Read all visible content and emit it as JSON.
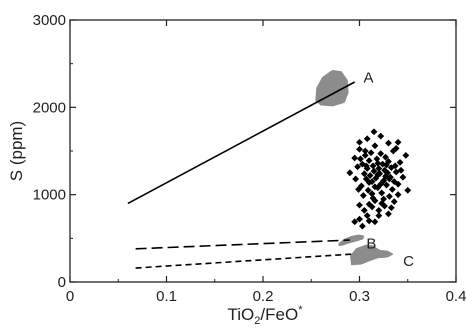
{
  "chart_data": {
    "type": "scatter",
    "title": "",
    "xlabel": {
      "main": "TiO",
      "sub": "2",
      "rest": "/FeO",
      "sup": "*"
    },
    "ylabel": "S (ppm)",
    "xlim": [
      0,
      0.4
    ],
    "ylim": [
      0,
      3000
    ],
    "xticks": [
      0,
      0.1,
      0.2,
      0.3,
      0.4
    ],
    "xtick_labels": [
      "0",
      "0.1",
      "0.2",
      "0.3",
      "0.4"
    ],
    "yticks": [
      0,
      1000,
      2000,
      3000
    ],
    "ytick_labels": [
      "0",
      "1000",
      "2000",
      "3000"
    ],
    "grid": false,
    "colors": {
      "marker": "#000000",
      "field": "#8c8c8c",
      "line": "#000000",
      "axis": "#222222"
    },
    "lines": [
      {
        "label": "A",
        "style": "solid",
        "points": [
          [
            0.06,
            900
          ],
          [
            0.295,
            2290
          ]
        ]
      },
      {
        "label": "B",
        "style": "long-dash",
        "points": [
          [
            0.068,
            380
          ],
          [
            0.29,
            480
          ]
        ]
      },
      {
        "label": "C",
        "style": "short-dash",
        "points": [
          [
            0.068,
            160
          ],
          [
            0.293,
            320
          ]
        ]
      }
    ],
    "shaded_fields": [
      {
        "name": "field-A",
        "outline": [
          [
            0.255,
            2080
          ],
          [
            0.256,
            2220
          ],
          [
            0.262,
            2340
          ],
          [
            0.272,
            2420
          ],
          [
            0.281,
            2405
          ],
          [
            0.287,
            2310
          ],
          [
            0.288,
            2170
          ],
          [
            0.284,
            2060
          ],
          [
            0.272,
            2020
          ],
          [
            0.26,
            2030
          ]
        ]
      },
      {
        "name": "field-B",
        "outline": [
          [
            0.279,
            440
          ],
          [
            0.285,
            490
          ],
          [
            0.292,
            520
          ],
          [
            0.299,
            535
          ],
          [
            0.304,
            525
          ],
          [
            0.303,
            495
          ],
          [
            0.297,
            475
          ],
          [
            0.289,
            450
          ],
          [
            0.282,
            425
          ],
          [
            0.279,
            420
          ]
        ]
      },
      {
        "name": "field-C",
        "outline": [
          [
            0.292,
            200
          ],
          [
            0.291,
            300
          ],
          [
            0.297,
            380
          ],
          [
            0.307,
            420
          ],
          [
            0.315,
            410
          ],
          [
            0.317,
            385
          ],
          [
            0.321,
            360
          ],
          [
            0.329,
            350
          ],
          [
            0.334,
            320
          ],
          [
            0.329,
            290
          ],
          [
            0.319,
            280
          ],
          [
            0.311,
            250
          ],
          [
            0.302,
            210
          ]
        ]
      }
    ],
    "points": [
      [
        0.29,
        1250
      ],
      [
        0.295,
        1420
      ],
      [
        0.298,
        1320
      ],
      [
        0.3,
        1520
      ],
      [
        0.302,
        1100
      ],
      [
        0.303,
        1350
      ],
      [
        0.305,
        1240
      ],
      [
        0.306,
        1450
      ],
      [
        0.307,
        1180
      ],
      [
        0.308,
        1300
      ],
      [
        0.309,
        1050
      ],
      [
        0.31,
        1390
      ],
      [
        0.311,
        1220
      ],
      [
        0.312,
        1480
      ],
      [
        0.313,
        1150
      ],
      [
        0.314,
        1330
      ],
      [
        0.315,
        1270
      ],
      [
        0.316,
        1560
      ],
      [
        0.317,
        1190
      ],
      [
        0.318,
        1410
      ],
      [
        0.319,
        1080
      ],
      [
        0.32,
        1300
      ],
      [
        0.321,
        1240
      ],
      [
        0.322,
        1470
      ],
      [
        0.323,
        1020
      ],
      [
        0.324,
        1350
      ],
      [
        0.325,
        1160
      ],
      [
        0.326,
        1280
      ],
      [
        0.327,
        1430
      ],
      [
        0.328,
        1110
      ],
      [
        0.329,
        1250
      ],
      [
        0.33,
        1380
      ],
      [
        0.331,
        980
      ],
      [
        0.332,
        1200
      ],
      [
        0.333,
        1310
      ],
      [
        0.335,
        1500
      ],
      [
        0.336,
        1150
      ],
      [
        0.338,
        1260
      ],
      [
        0.34,
        1600
      ],
      [
        0.342,
        1370
      ],
      [
        0.345,
        1200
      ],
      [
        0.348,
        1450
      ],
      [
        0.35,
        1050
      ],
      [
        0.296,
        1180
      ],
      [
        0.299,
        1060
      ],
      [
        0.301,
        1410
      ],
      [
        0.304,
        990
      ],
      [
        0.307,
        1330
      ],
      [
        0.31,
        1140
      ],
      [
        0.313,
        1010
      ],
      [
        0.316,
        1090
      ],
      [
        0.319,
        1360
      ],
      [
        0.322,
        1120
      ],
      [
        0.325,
        950
      ],
      [
        0.328,
        1340
      ],
      [
        0.331,
        1180
      ],
      [
        0.334,
        1060
      ],
      [
        0.337,
        1330
      ],
      [
        0.34,
        1120
      ],
      [
        0.343,
        1280
      ],
      [
        0.3,
        880
      ],
      [
        0.305,
        820
      ],
      [
        0.308,
        760
      ],
      [
        0.31,
        890
      ],
      [
        0.313,
        860
      ],
      [
        0.316,
        930
      ],
      [
        0.32,
        820
      ],
      [
        0.323,
        900
      ],
      [
        0.326,
        870
      ],
      [
        0.33,
        780
      ],
      [
        0.333,
        850
      ],
      [
        0.336,
        920
      ],
      [
        0.34,
        1000
      ],
      [
        0.295,
        690
      ],
      [
        0.3,
        720
      ],
      [
        0.303,
        640
      ],
      [
        0.31,
        700
      ],
      [
        0.316,
        690
      ],
      [
        0.32,
        760
      ],
      [
        0.315,
        1720
      ],
      [
        0.308,
        1640
      ],
      [
        0.322,
        1670
      ],
      [
        0.33,
        1590
      ],
      [
        0.3,
        1600
      ],
      [
        0.338,
        1530
      ],
      [
        0.327,
        1210
      ],
      [
        0.314,
        960
      ],
      [
        0.306,
        1500
      ],
      [
        0.319,
        1230
      ]
    ]
  }
}
